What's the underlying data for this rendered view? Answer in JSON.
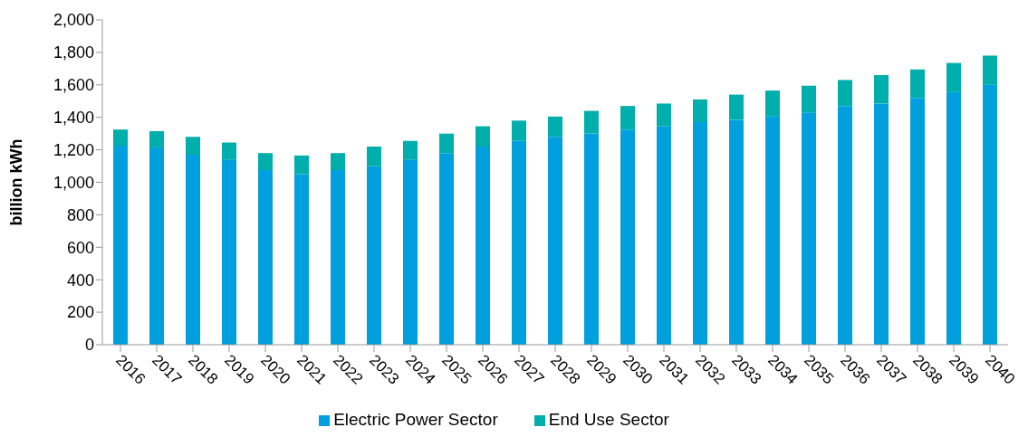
{
  "chart_data": {
    "type": "bar",
    "stacked": true,
    "ylabel": "billion  kWh",
    "categories": [
      "2016",
      "2017",
      "2018",
      "2019",
      "2020",
      "2021",
      "2022",
      "2023",
      "2024",
      "2025",
      "2026",
      "2027",
      "2028",
      "2029",
      "2030",
      "2031",
      "2032",
      "2033",
      "2034",
      "2035",
      "2036",
      "2037",
      "2038",
      "2039",
      "2040"
    ],
    "series": [
      {
        "name": "Electric Power Sector",
        "color": "#00a0de",
        "values": [
          1225,
          1215,
          1170,
          1140,
          1075,
          1050,
          1075,
          1100,
          1140,
          1180,
          1220,
          1255,
          1280,
          1300,
          1325,
          1345,
          1370,
          1385,
          1405,
          1430,
          1470,
          1485,
          1520,
          1555,
          1600
        ]
      },
      {
        "name": "End Use Sector",
        "color": "#00aeac",
        "values": [
          100,
          100,
          110,
          105,
          105,
          115,
          105,
          120,
          115,
          120,
          125,
          125,
          125,
          140,
          145,
          140,
          140,
          155,
          160,
          165,
          160,
          175,
          175,
          180,
          180
        ]
      }
    ],
    "ylim": [
      0,
      2000
    ],
    "yticks": [
      0,
      200,
      400,
      600,
      800,
      {
        "value": 1000,
        "label": "1,000"
      },
      {
        "value": 1200,
        "label": "1,200"
      },
      {
        "value": 1400,
        "label": "1,400"
      },
      {
        "value": 1600,
        "label": "1,600"
      },
      {
        "value": 1800,
        "label": "1,800"
      },
      {
        "value": 2000,
        "label": "2,000"
      }
    ],
    "grid": false,
    "legend": "bottom"
  }
}
